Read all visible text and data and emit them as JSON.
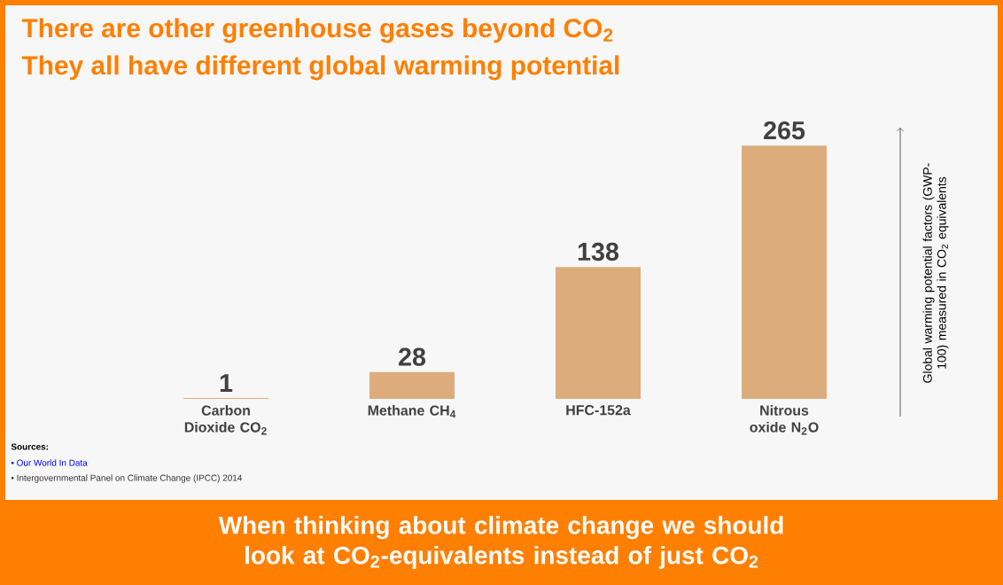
{
  "chart_data": {
    "type": "bar",
    "title": "There are other greenhouse gases beyond CO$_{2}$",
    "subtitle": "They all have different global warming potential",
    "ylabel": "Global warming potential factors (GWP-100) measured in CO$_{2}$ equivalents",
    "categories": [
      "Carbon Dioxide CO$_{2}$",
      "Methane CH$_{4}$",
      "HFC-152a",
      "Nitrous oxide N$_{2}$O"
    ],
    "values": [
      1,
      28,
      138,
      265
    ],
    "color": "#dcac7c",
    "data_labels": true,
    "annotations": [
      "Sources:",
      "• Our World In Data",
      "• Intergovernmental Panel on Climate Change (IPCC) 2014",
      "When thinking about climate change we should look at CO$_{2}$-equivalents instead of just CO$_{2}$"
    ]
  }
}
